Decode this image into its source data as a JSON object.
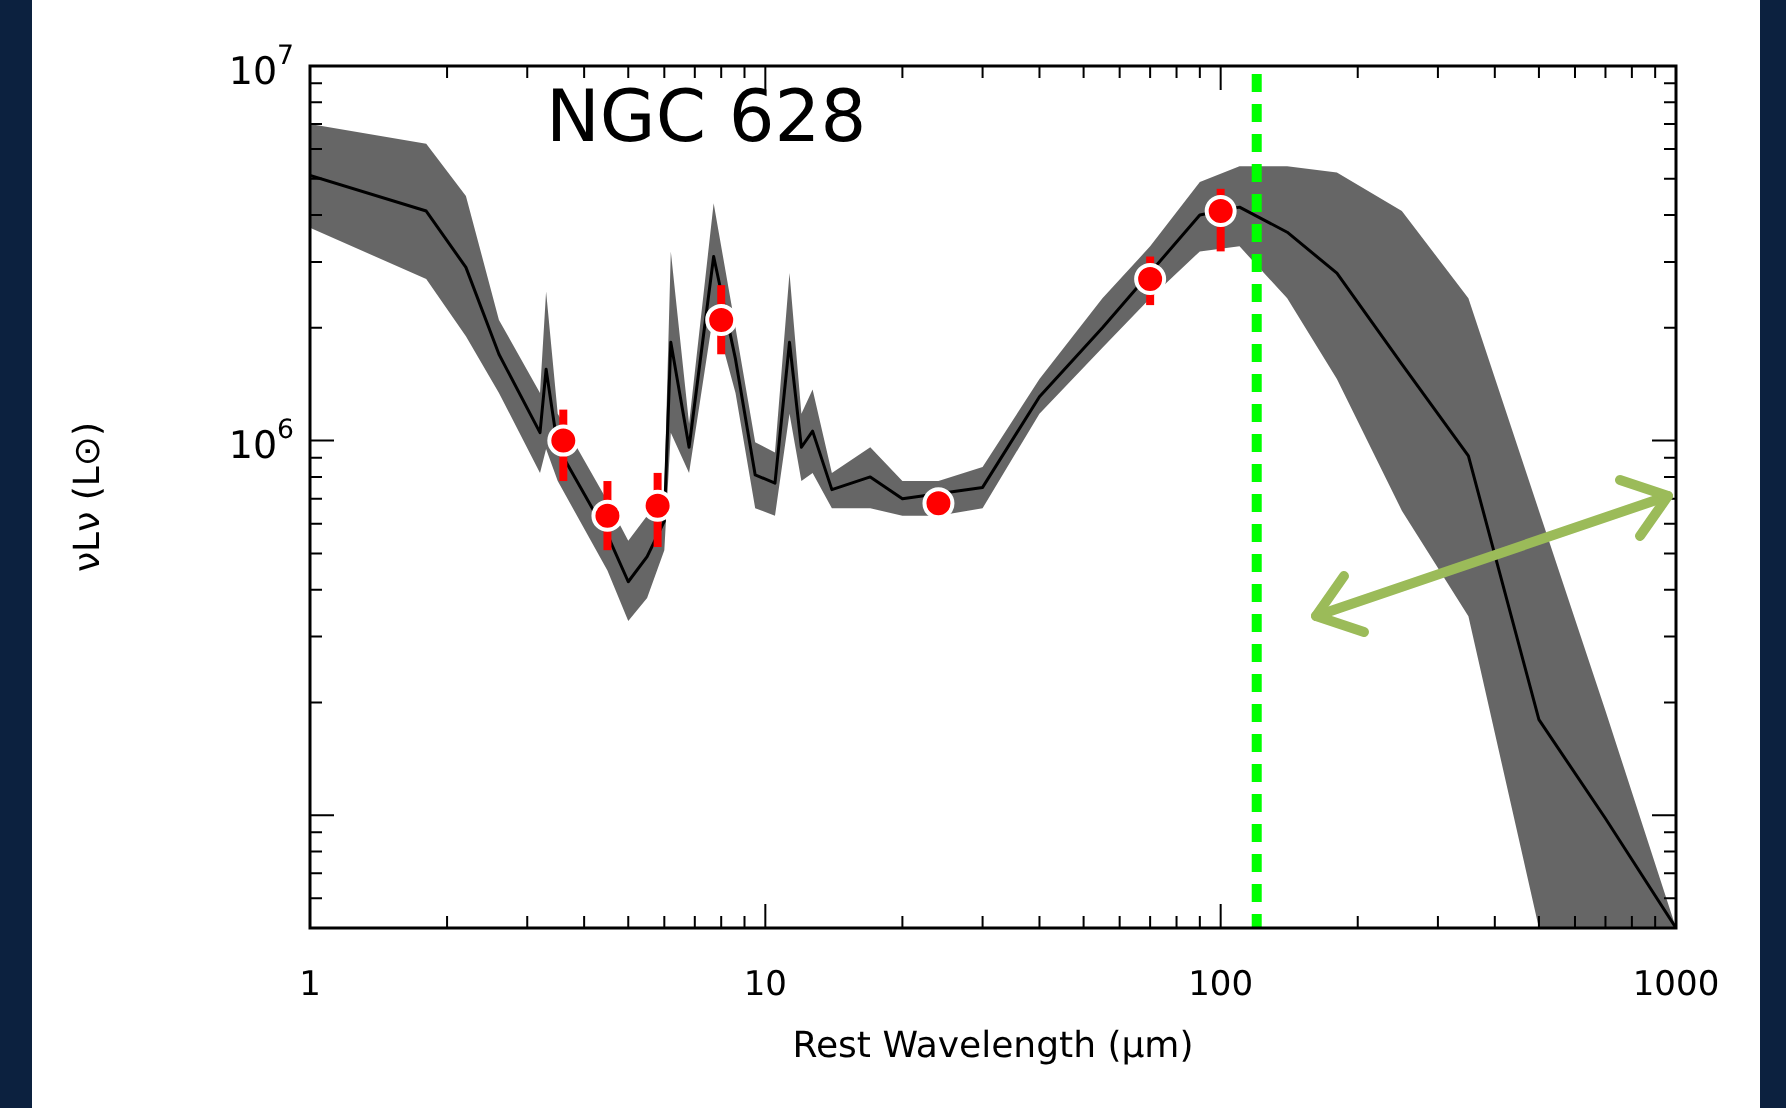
{
  "chart_data": {
    "type": "line",
    "title": "NGC 628",
    "xlabel": "Rest Wavelength (μm)",
    "ylabel": "νLν (L⊙)",
    "log": "xy",
    "grid": false,
    "xlim": [
      1,
      1000
    ],
    "ylim": [
      50000,
      10000000
    ],
    "xticks": [
      1,
      {
        "value": 2,
        "label": null
      },
      {
        "value": 3,
        "label": null
      },
      {
        "value": 4,
        "label": null
      },
      {
        "value": 5,
        "label": null
      },
      {
        "value": 6,
        "label": null
      },
      {
        "value": 7,
        "label": null
      },
      {
        "value": 8,
        "label": null
      },
      {
        "value": 9,
        "label": null
      },
      10,
      {
        "value": 20,
        "label": null
      },
      {
        "value": 30,
        "label": null
      },
      {
        "value": 40,
        "label": null
      },
      {
        "value": 50,
        "label": null
      },
      {
        "value": 60,
        "label": null
      },
      {
        "value": 70,
        "label": null
      },
      {
        "value": 80,
        "label": null
      },
      {
        "value": 90,
        "label": null
      },
      100,
      {
        "value": 200,
        "label": null
      },
      {
        "value": 300,
        "label": null
      },
      {
        "value": 400,
        "label": null
      },
      {
        "value": 500,
        "label": null
      },
      {
        "value": 600,
        "label": null
      },
      {
        "value": 700,
        "label": null
      },
      {
        "value": 800,
        "label": null
      },
      {
        "value": 900,
        "label": null
      },
      1000
    ],
    "yticks": [
      {
        "value": 60000,
        "label": null
      },
      {
        "value": 70000,
        "label": null
      },
      {
        "value": 80000,
        "label": null
      },
      {
        "value": 90000,
        "label": null
      },
      {
        "value": 100000,
        "label": null
      },
      {
        "value": 200000,
        "label": null
      },
      {
        "value": 300000,
        "label": null
      },
      {
        "value": 400000,
        "label": null
      },
      {
        "value": 500000,
        "label": null
      },
      {
        "value": 600000,
        "label": null
      },
      {
        "value": 700000,
        "label": null
      },
      {
        "value": 800000,
        "label": null
      },
      {
        "value": 900000,
        "label": null
      },
      {
        "value": 1000000,
        "label": "10$^{6}$"
      },
      {
        "value": 2000000,
        "label": null
      },
      {
        "value": 3000000,
        "label": null
      },
      {
        "value": 4000000,
        "label": null
      },
      {
        "value": 5000000,
        "label": null
      },
      {
        "value": 6000000,
        "label": null
      },
      {
        "value": 7000000,
        "label": null
      },
      {
        "value": 8000000,
        "label": null
      },
      {
        "value": 9000000,
        "label": null
      },
      {
        "value": 10000000,
        "label": "10$^{7}$"
      }
    ],
    "series": [
      {
        "type": "line",
        "color": "#000000",
        "marker": "none",
        "x": [
          1,
          1.8,
          2.2,
          2.6,
          3.2,
          3.3,
          3.5,
          4.5,
          5.0,
          5.5,
          6.0,
          6.2,
          6.8,
          7.7,
          8.6,
          9.5,
          10.5,
          11.3,
          12,
          12.7,
          14,
          17,
          20,
          24,
          30,
          40,
          55,
          70,
          90,
          110,
          140,
          180,
          250,
          350,
          500,
          700,
          1000
        ],
        "values": [
          5100000,
          4100000,
          2900000,
          1700000,
          1050000,
          1550000,
          960000,
          560000,
          420000,
          490000,
          610000,
          1830000,
          960000,
          3100000,
          1650000,
          810000,
          770000,
          1830000,
          960000,
          1060000,
          740000,
          800000,
          700000,
          null,
          750000,
          1310000,
          2000000,
          null,
          4000000,
          4200000,
          3600000,
          2800000,
          1600000,
          910000,
          180000,
          98000,
          50000
        ],
        "lower": [
          3700000,
          2700000,
          1900000,
          1340000,
          820000,
          950000,
          780000,
          450000,
          330000,
          380000,
          510000,
          1050000,
          820000,
          2200000,
          1340000,
          660000,
          630000,
          1180000,
          780000,
          820000,
          660000,
          660000,
          630000,
          630000,
          660000,
          1180000,
          1770000,
          2400000,
          3200000,
          3300000,
          2400000,
          1460000,
          650000,
          340000,
          50000,
          50000,
          50000
        ],
        "upper": [
          7000000,
          6200000,
          4500000,
          2100000,
          1340000,
          2500000,
          1180000,
          690000,
          540000,
          630000,
          730000,
          3200000,
          1110000,
          4300000,
          2000000,
          990000,
          930000,
          2800000,
          1180000,
          1370000,
          820000,
          960000,
          780000,
          780000,
          850000,
          1460000,
          2400000,
          3300000,
          4900000,
          5400000,
          5400000,
          5200000,
          4100000,
          2400000,
          650000,
          190000,
          50000
        ]
      },
      {
        "type": "scatter",
        "color": "#ff0000",
        "marker": "circle",
        "x": [
          3.6,
          4.5,
          5.8,
          8.0,
          24,
          70,
          100
        ],
        "values": [
          1000000,
          630000,
          670000,
          2100000,
          680000,
          2700000,
          4100000
        ],
        "errors": [
          [
            780000,
            1210000
          ],
          [
            510000,
            780000
          ],
          [
            520000,
            820000
          ],
          [
            1700000,
            2600000
          ],
          null,
          [
            2300000,
            3100000
          ],
          [
            3200000,
            4700000
          ]
        ]
      }
    ],
    "ref_lines": [
      {
        "axis": "x",
        "value": 120,
        "color": "#00ff00",
        "line_style": "dashed"
      }
    ]
  }
}
